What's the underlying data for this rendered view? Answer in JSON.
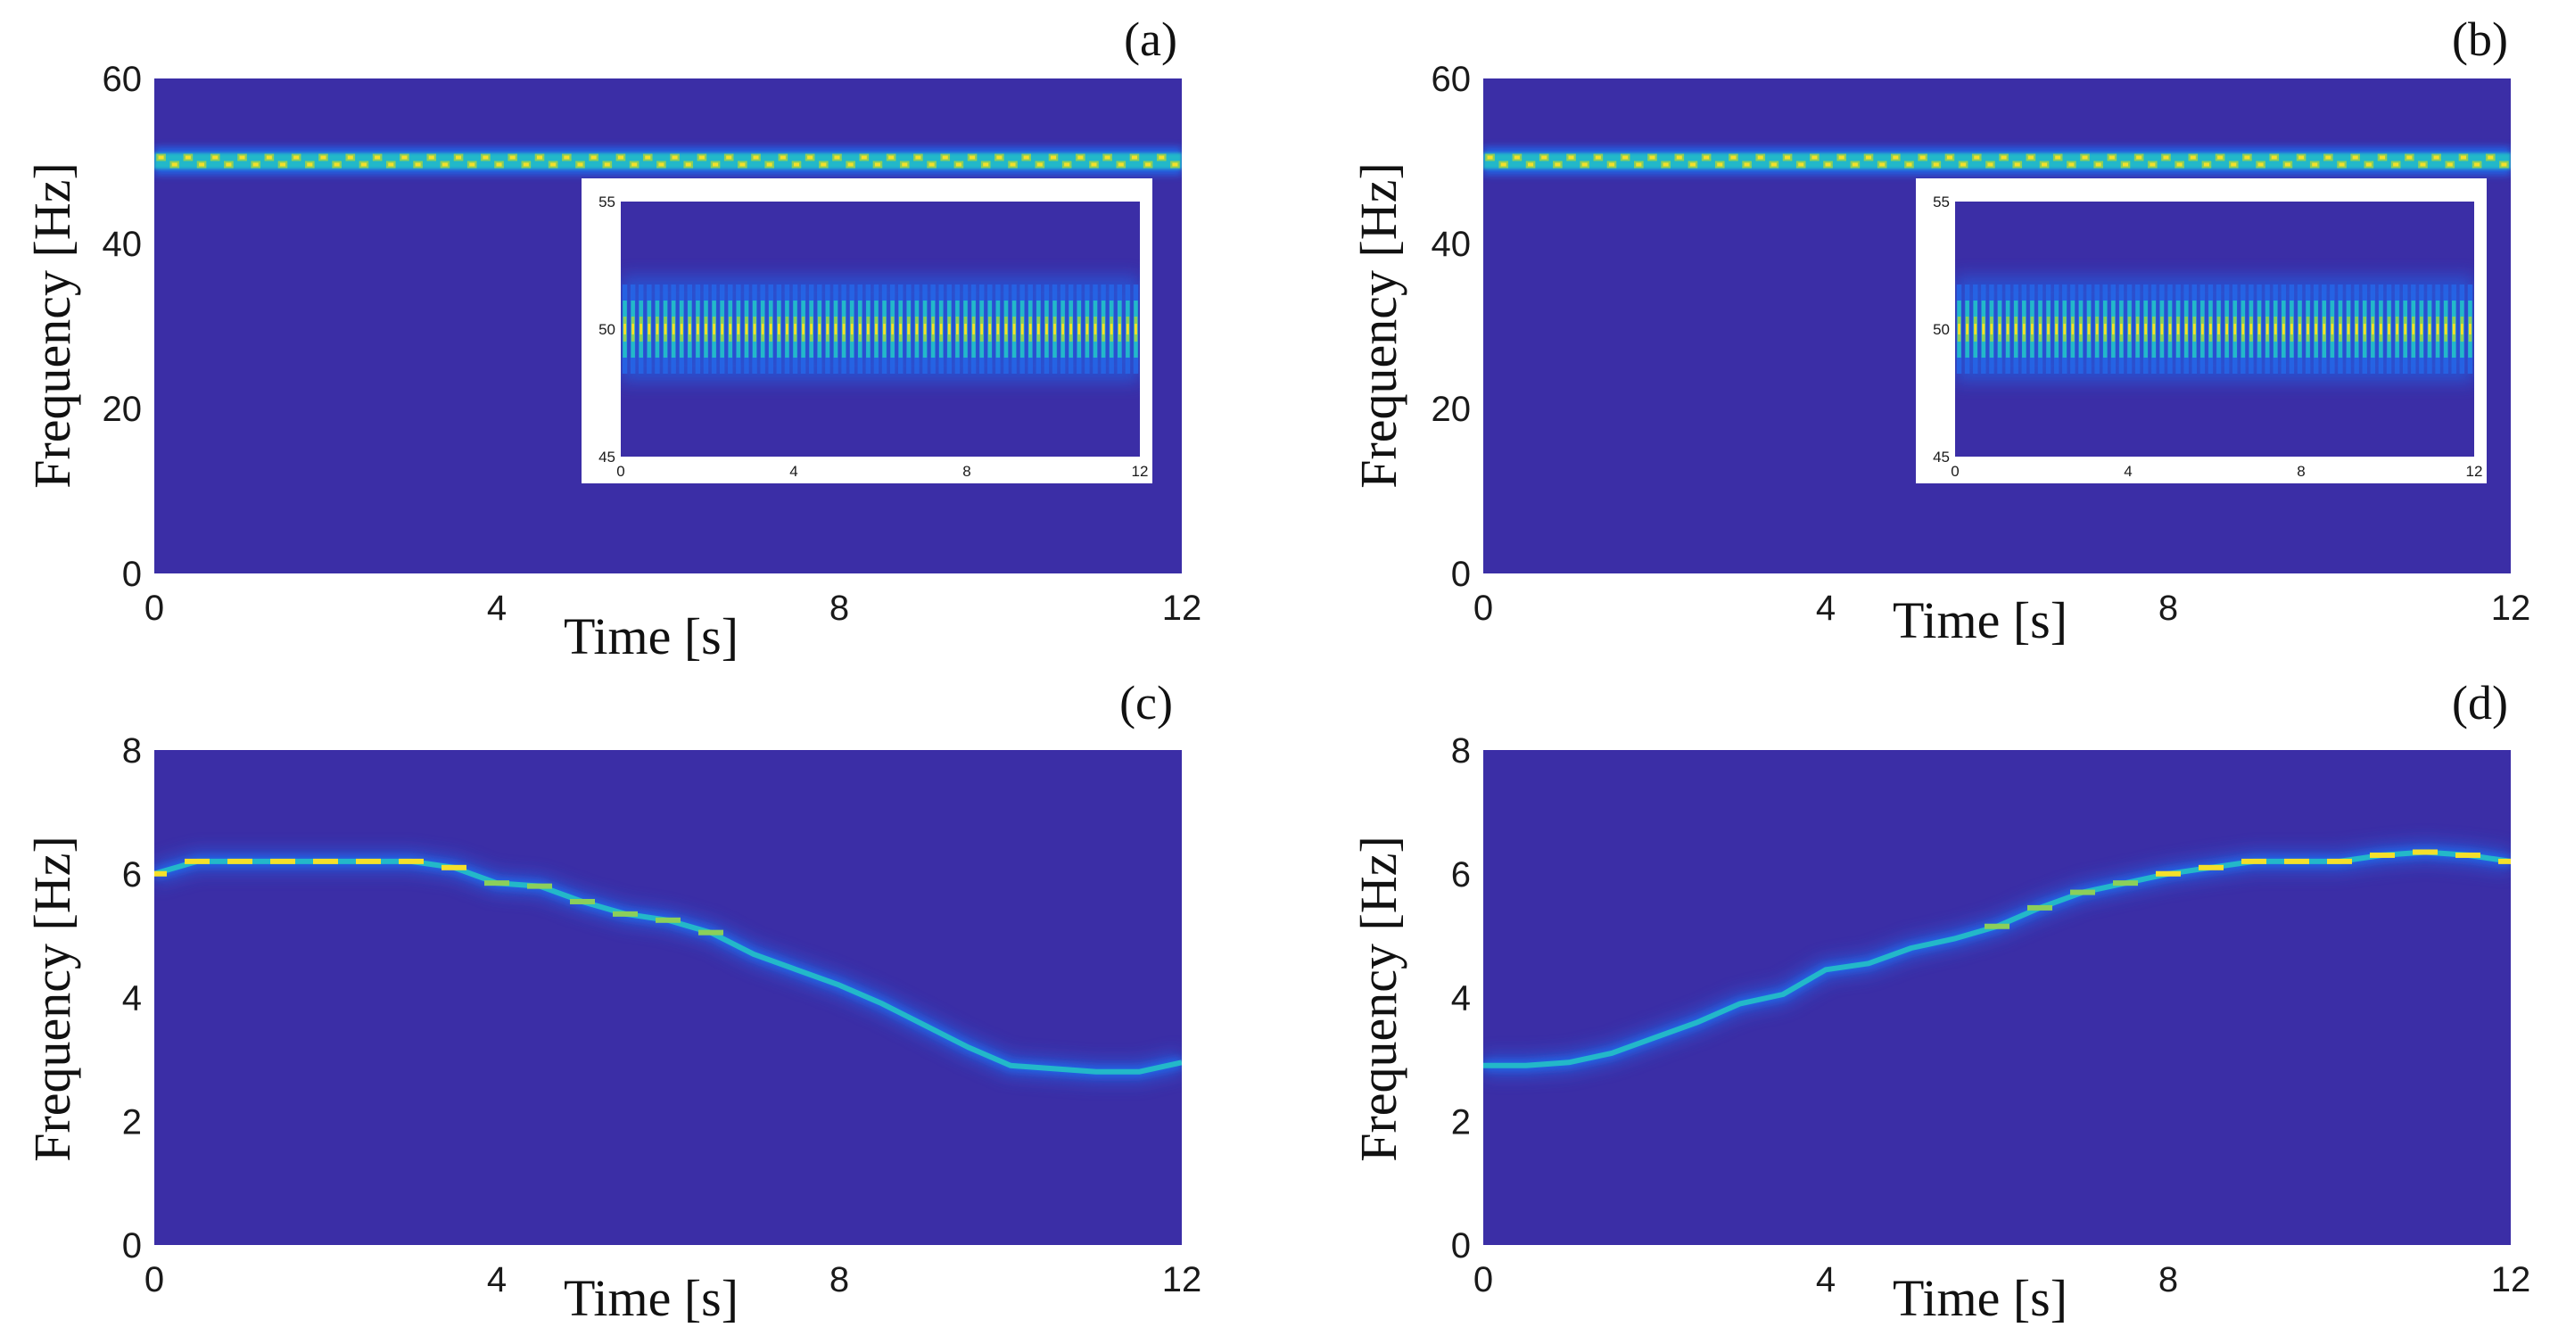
{
  "colors": {
    "background": "#3b2ea6",
    "ridge_outer": "#2466e8",
    "ridge_mid": "#23b8c9",
    "ridge_inner": "#8ccf5a",
    "ridge_peak": "#f5e02a",
    "inset_frame": "#ffffff"
  },
  "chart_data": [
    {
      "id": "a",
      "type": "heatmap",
      "panel_label": "(a)",
      "xlabel": "Time [s]",
      "ylabel": "Frequency [Hz]",
      "xlim": [
        0,
        12
      ],
      "ylim": [
        0,
        60
      ],
      "xticks": [
        "0",
        "4",
        "8",
        "12"
      ],
      "yticks": [
        "0",
        "20",
        "40",
        "60"
      ],
      "ridge": {
        "t": [
          0,
          1,
          2,
          3,
          4,
          5,
          6,
          7,
          8,
          9,
          10,
          11,
          12
        ],
        "f": [
          50,
          50,
          50,
          50,
          50,
          50,
          50,
          50,
          50,
          50,
          50,
          50,
          50
        ]
      },
      "inset": {
        "xlim": [
          0,
          12
        ],
        "ylim": [
          45,
          55
        ],
        "xticks": [
          "0",
          "4",
          "8",
          "12"
        ],
        "yticks": [
          "45",
          "50",
          "55"
        ],
        "center_f": 50
      }
    },
    {
      "id": "b",
      "type": "heatmap",
      "panel_label": "(b)",
      "xlabel": "Time [s]",
      "ylabel": "Frequency [Hz]",
      "xlim": [
        0,
        12
      ],
      "ylim": [
        0,
        60
      ],
      "xticks": [
        "0",
        "4",
        "8",
        "12"
      ],
      "yticks": [
        "0",
        "20",
        "40",
        "60"
      ],
      "ridge": {
        "t": [
          0,
          1,
          2,
          3,
          4,
          5,
          6,
          7,
          8,
          9,
          10,
          11,
          12
        ],
        "f": [
          50,
          50,
          50,
          50,
          50,
          50,
          50,
          50,
          50,
          50,
          50,
          50,
          50
        ]
      },
      "inset": {
        "xlim": [
          0,
          12
        ],
        "ylim": [
          45,
          55
        ],
        "xticks": [
          "0",
          "4",
          "8",
          "12"
        ],
        "yticks": [
          "45",
          "50",
          "55"
        ],
        "center_f": 50
      }
    },
    {
      "id": "c",
      "type": "heatmap",
      "panel_label": "(c)",
      "xlabel": "Time [s]",
      "ylabel": "Frequency [Hz]",
      "xlim": [
        0,
        12
      ],
      "ylim": [
        0,
        8
      ],
      "xticks": [
        "0",
        "4",
        "8",
        "12"
      ],
      "yticks": [
        "0",
        "2",
        "4",
        "6",
        "8"
      ],
      "ridge": {
        "t": [
          0,
          0.5,
          1,
          1.5,
          2,
          2.5,
          3,
          3.5,
          4,
          4.5,
          5,
          5.5,
          6,
          6.5,
          7,
          7.5,
          8,
          8.5,
          9,
          9.5,
          10,
          10.5,
          11,
          11.5,
          12
        ],
        "f": [
          6.0,
          6.2,
          6.2,
          6.2,
          6.2,
          6.2,
          6.2,
          6.1,
          5.85,
          5.8,
          5.55,
          5.35,
          5.25,
          5.05,
          4.7,
          4.45,
          4.2,
          3.9,
          3.55,
          3.2,
          2.9,
          2.85,
          2.8,
          2.8,
          2.95
        ]
      }
    },
    {
      "id": "d",
      "type": "heatmap",
      "panel_label": "(d)",
      "xlabel": "Time [s]",
      "ylabel": "Frequency [Hz]",
      "xlim": [
        0,
        12
      ],
      "ylim": [
        0,
        8
      ],
      "xticks": [
        "0",
        "4",
        "8",
        "12"
      ],
      "yticks": [
        "0",
        "2",
        "4",
        "6",
        "8"
      ],
      "ridge": {
        "t": [
          0,
          0.5,
          1,
          1.5,
          2,
          2.5,
          3,
          3.5,
          4,
          4.5,
          5,
          5.5,
          6,
          6.5,
          7,
          7.5,
          8,
          8.5,
          9,
          9.5,
          10,
          10.5,
          11,
          11.5,
          12
        ],
        "f": [
          2.9,
          2.9,
          2.95,
          3.1,
          3.35,
          3.6,
          3.9,
          4.05,
          4.45,
          4.55,
          4.8,
          4.95,
          5.15,
          5.45,
          5.7,
          5.85,
          6.0,
          6.1,
          6.2,
          6.2,
          6.2,
          6.3,
          6.35,
          6.3,
          6.2
        ]
      }
    }
  ]
}
